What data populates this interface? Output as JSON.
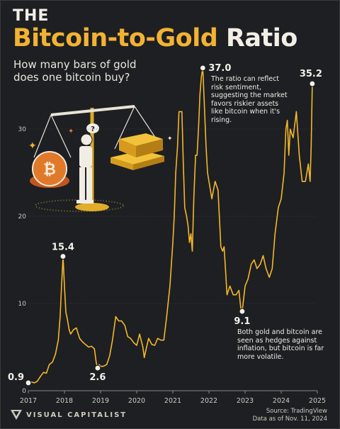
{
  "header": {
    "pre_title": "THE",
    "title_highlight": "Bitcoin-to-Gold",
    "title_rest": "Ratio",
    "subtitle": "How many bars of gold does one bitcoin buy?"
  },
  "annotations": {
    "peak_2021_text": "The ratio can reflect risk sentiment, suggesting the market favors riskier assets like bitcoin when it's rising.",
    "low_2022_text": "Both gold and bitcoin are seen as hedges against inflation, but bitcoin is far more volatile."
  },
  "footer": {
    "brand": "VISUAL CAPITALIST",
    "source": "Source: TradingView",
    "date": "Data as of Nov. 11, 2024"
  },
  "colors": {
    "accent": "#f2b233",
    "background": "#1d1f22",
    "line": "#f5b72a"
  },
  "chart_data": {
    "type": "line",
    "title": "Bitcoin-to-Gold Ratio",
    "xlabel": "",
    "ylabel": "",
    "xlim": [
      2017,
      2025
    ],
    "ylim": [
      0,
      40
    ],
    "x_ticks": [
      "2017",
      "2018",
      "2019",
      "2020",
      "2021",
      "2022",
      "2023",
      "2024",
      "2025"
    ],
    "y_ticks": [
      "0",
      "10",
      "20",
      "30"
    ],
    "grid": "horizontal",
    "series": [
      {
        "x": [
          2017.0,
          2017.08,
          2017.17,
          2017.25,
          2017.33,
          2017.42,
          2017.5,
          2017.58,
          2017.67,
          2017.75,
          2017.83,
          2017.88,
          2017.92,
          2017.96,
          2018.0,
          2018.04,
          2018.08,
          2018.13,
          2018.17,
          2018.25,
          2018.33,
          2018.42,
          2018.5,
          2018.58,
          2018.67,
          2018.75,
          2018.83,
          2018.88,
          2018.92,
          2018.96,
          2019.0,
          2019.08,
          2019.17,
          2019.25,
          2019.33,
          2019.42,
          2019.5,
          2019.58,
          2019.67,
          2019.75,
          2019.83,
          2019.92,
          2020.0,
          2020.08,
          2020.17,
          2020.21,
          2020.25,
          2020.33,
          2020.42,
          2020.5,
          2020.58,
          2020.67,
          2020.75,
          2020.83,
          2020.92,
          2021.0,
          2021.04,
          2021.08,
          2021.13,
          2021.17,
          2021.25,
          2021.29,
          2021.33,
          2021.38,
          2021.42,
          2021.46,
          2021.5,
          2021.54,
          2021.58,
          2021.63,
          2021.67,
          2021.71,
          2021.75,
          2021.79,
          2021.83,
          2021.88,
          2021.92,
          2021.96,
          2022.0,
          2022.08,
          2022.17,
          2022.25,
          2022.33,
          2022.38,
          2022.42,
          2022.5,
          2022.58,
          2022.67,
          2022.75,
          2022.83,
          2022.88,
          2022.92,
          2023.0,
          2023.08,
          2023.17,
          2023.25,
          2023.33,
          2023.42,
          2023.5,
          2023.58,
          2023.67,
          2023.75,
          2023.83,
          2023.92,
          2024.0,
          2024.08,
          2024.13,
          2024.17,
          2024.21,
          2024.25,
          2024.33,
          2024.42,
          2024.5,
          2024.58,
          2024.67,
          2024.75,
          2024.8,
          2024.83,
          2024.86
        ],
        "values": [
          0.9,
          1.0,
          0.9,
          1.1,
          1.6,
          2.1,
          2.0,
          3.0,
          3.3,
          4.2,
          5.8,
          8.5,
          12.0,
          15.4,
          12.0,
          9.0,
          8.2,
          7.0,
          6.5,
          7.0,
          7.2,
          6.0,
          5.6,
          5.3,
          5.0,
          5.1,
          4.8,
          3.2,
          2.6,
          3.0,
          2.8,
          2.8,
          3.0,
          4.0,
          5.8,
          8.5,
          8.0,
          8.0,
          7.5,
          6.2,
          6.0,
          5.5,
          5.2,
          6.5,
          5.0,
          3.8,
          4.6,
          6.0,
          5.3,
          5.2,
          6.0,
          5.8,
          5.8,
          8.5,
          12.0,
          17.0,
          20.0,
          25.0,
          28.0,
          32.0,
          32.0,
          26.0,
          21.0,
          20.0,
          19.0,
          17.0,
          18.0,
          16.0,
          22.0,
          27.0,
          27.0,
          30.0,
          34.0,
          36.0,
          37.0,
          32.0,
          28.0,
          25.0,
          24.0,
          22.0,
          24.0,
          23.0,
          16.5,
          16.0,
          16.5,
          11.0,
          12.0,
          11.0,
          11.0,
          11.5,
          9.5,
          9.1,
          12.0,
          12.8,
          14.5,
          15.0,
          14.0,
          14.5,
          15.5,
          14.0,
          13.0,
          14.0,
          18.0,
          21.0,
          22.0,
          25.0,
          30.0,
          31.0,
          27.0,
          30.0,
          29.0,
          32.0,
          27.0,
          24.0,
          24.0,
          26.0,
          24.0,
          28.0,
          35.2
        ]
      }
    ],
    "data_labels": [
      {
        "text": "0.9",
        "x": 2017.0,
        "y": 0.9
      },
      {
        "text": "15.4",
        "x": 2017.96,
        "y": 15.4
      },
      {
        "text": "2.6",
        "x": 2018.92,
        "y": 2.6
      },
      {
        "text": "37.0",
        "x": 2021.83,
        "y": 37.0
      },
      {
        "text": "9.1",
        "x": 2022.92,
        "y": 9.1
      },
      {
        "text": "35.2",
        "x": 2024.86,
        "y": 35.2
      }
    ]
  }
}
